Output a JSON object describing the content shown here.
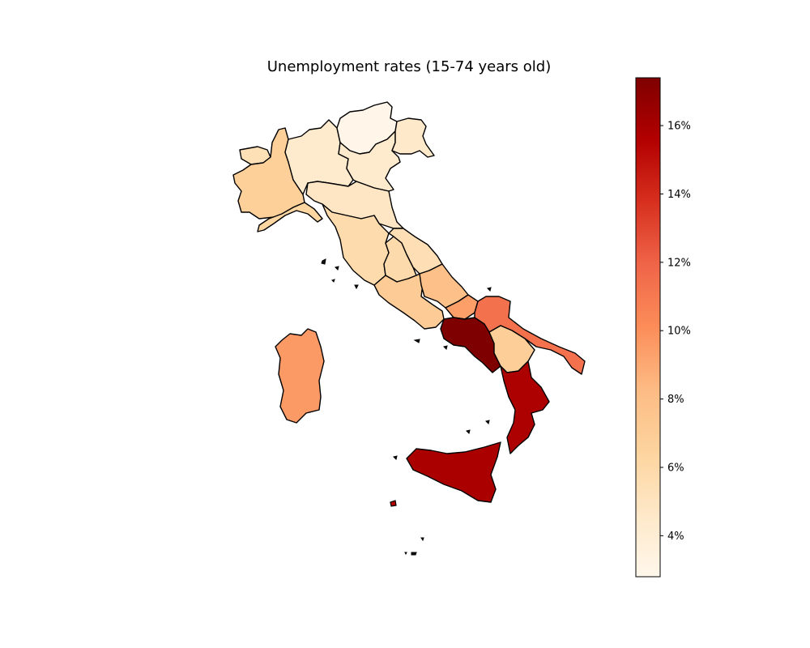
{
  "chart_data": {
    "type": "choropleth",
    "title": "Unemployment rates (15-74 years old)",
    "colormap": "OrRd",
    "colorbar": {
      "range": [
        2.8,
        17.4
      ],
      "ticks": [
        4,
        6,
        8,
        10,
        12,
        14,
        16
      ],
      "tick_labels": [
        "4%",
        "6%",
        "8%",
        "10%",
        "12%",
        "14%",
        "16%"
      ],
      "position": "right"
    },
    "regions": [
      {
        "name": "Valle d'Aosta",
        "value": 5.4
      },
      {
        "name": "Piemonte",
        "value": 6.8
      },
      {
        "name": "Liguria",
        "value": 6.3
      },
      {
        "name": "Lombardia",
        "value": 4.3
      },
      {
        "name": "Trentino-Alto Adige",
        "value": 3.0
      },
      {
        "name": "Veneto",
        "value": 4.4
      },
      {
        "name": "Friuli-Venezia Giulia",
        "value": 4.5
      },
      {
        "name": "Emilia-Romagna",
        "value": 4.8
      },
      {
        "name": "Toscana",
        "value": 5.8
      },
      {
        "name": "Umbria",
        "value": 5.9
      },
      {
        "name": "Marche",
        "value": 5.5
      },
      {
        "name": "Lazio",
        "value": 7.1
      },
      {
        "name": "Abruzzo",
        "value": 7.9
      },
      {
        "name": "Molise",
        "value": 9.4
      },
      {
        "name": "Campania",
        "value": 17.4
      },
      {
        "name": "Puglia",
        "value": 11.4
      },
      {
        "name": "Basilicata",
        "value": 6.9
      },
      {
        "name": "Calabria",
        "value": 15.8
      },
      {
        "name": "Sicilia",
        "value": 15.9
      },
      {
        "name": "Sardegna",
        "value": 9.6
      }
    ]
  }
}
